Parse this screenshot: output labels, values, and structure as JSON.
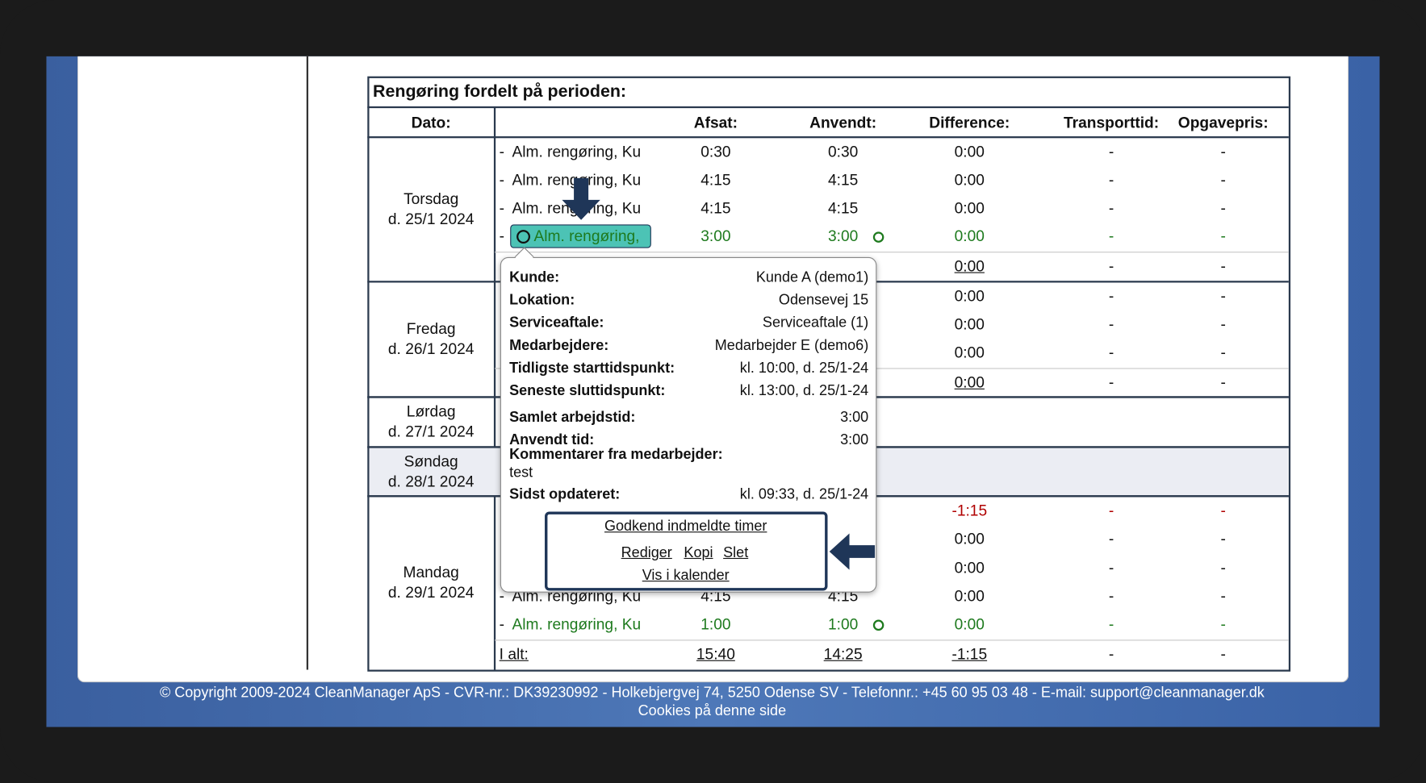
{
  "table": {
    "title": "Rengøring fordelt på perioden:",
    "task_prefix": "-",
    "columns": {
      "date": "Dato:",
      "planned": "Afsat:",
      "used": "Anvendt:",
      "difference": "Difference:",
      "transport": "Transporttid:",
      "price": "Opgavepris:"
    },
    "groups": [
      {
        "day": "Torsdag",
        "date": "d. 25/1 2024",
        "rows": [
          {
            "task": "Alm. rengøring, Ku",
            "planned": "0:30",
            "used": "0:30",
            "difference": "0:00",
            "transport": "-",
            "price": "-"
          },
          {
            "task": "Alm. rengøring, Ku",
            "planned": "4:15",
            "used": "4:15",
            "difference": "0:00",
            "transport": "-",
            "price": "-"
          },
          {
            "task": "Alm. rengøring, Ku",
            "planned": "4:15",
            "used": "4:15",
            "difference": "0:00",
            "transport": "-",
            "price": "-"
          },
          {
            "task": "Alm. rengøring,",
            "planned": "3:00",
            "used": "3:00",
            "difference": "0:00",
            "transport": "-",
            "price": "-",
            "color": "#1e7a1e",
            "selected": true
          }
        ],
        "subtotal": {
          "difference": "0:00",
          "transport": "-",
          "price": "-"
        }
      },
      {
        "day": "Fredag",
        "date": "d. 26/1 2024",
        "rows": [
          {
            "difference": "0:00",
            "transport": "-",
            "price": "-"
          },
          {
            "difference": "0:00",
            "transport": "-",
            "price": "-"
          },
          {
            "difference": "0:00",
            "transport": "-",
            "price": "-"
          }
        ],
        "subtotal": {
          "difference": "0:00",
          "transport": "-",
          "price": "-"
        }
      },
      {
        "day": "Lørdag",
        "date": "d. 27/1 2024",
        "rows": []
      },
      {
        "day": "Søndag",
        "date": "d. 28/1 2024",
        "rows": [],
        "shaded": true
      },
      {
        "day": "Mandag",
        "date": "d. 29/1 2024",
        "rows": [
          {
            "difference": "-1:15",
            "transport": "-",
            "price": "-",
            "color": "#b00000"
          },
          {
            "difference": "0:00",
            "transport": "-",
            "price": "-"
          },
          {
            "difference": "0:00",
            "transport": "-",
            "price": "-"
          },
          {
            "task": "Alm. rengøring, Ku",
            "planned": "4:15",
            "used": "4:15",
            "difference": "0:00",
            "transport": "-",
            "price": "-"
          },
          {
            "task": "Alm. rengøring, Ku",
            "planned": "1:00",
            "used": "1:00",
            "difference": "0:00",
            "transport": "-",
            "price": "-",
            "color": "#1e7a1e"
          }
        ]
      }
    ],
    "total": {
      "label": "I alt:",
      "planned": "15:40",
      "used": "14:25",
      "difference": "-1:15",
      "transport": "-",
      "price": "-"
    }
  },
  "popup": {
    "fields": [
      {
        "label": "Kunde:",
        "value": "Kunde A (demo1)"
      },
      {
        "label": "Lokation:",
        "value": "Odensevej 15"
      },
      {
        "label": "Serviceaftale:",
        "value": "Serviceaftale (1)"
      },
      {
        "label": "Medarbejdere:",
        "value": "Medarbejder E (demo6)"
      },
      {
        "label": "Tidligste starttidspunkt:",
        "value": "kl. 10:00, d. 25/1-24"
      },
      {
        "label": "Seneste sluttidspunkt:",
        "value": "kl. 13:00, d. 25/1-24"
      },
      {
        "label": "Samlet arbejdstid:",
        "value": "3:00"
      },
      {
        "label": "Anvendt tid:",
        "value": "3:00"
      }
    ],
    "comment_label": "Kommentarer fra medarbejder:",
    "comment": "test",
    "updated_label": "Sidst opdateret:",
    "updated": "kl. 09:33, d. 25/1-24",
    "links": {
      "approve": "Godkend indmeldte timer",
      "edit": "Rediger",
      "copy": "Kopi",
      "delete": "Slet",
      "calendar": "Vis i kalender"
    }
  },
  "footer": {
    "copyright": "© Copyright 2009-2024 CleanManager ApS - CVR-nr.: DK39230992 - Holkebjergvej 74, 5250 Odense SV - Telefonnr.: +45 60 95 03 48 - E-mail: support@cleanmanager.dk",
    "cookies": "Cookies på denne side"
  }
}
